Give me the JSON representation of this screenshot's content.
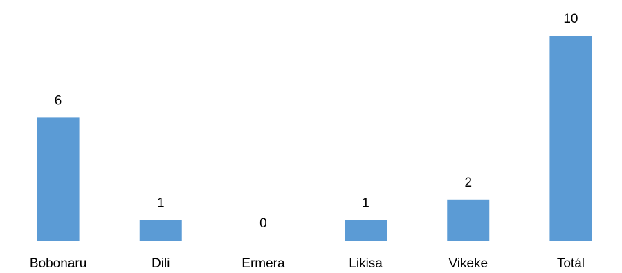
{
  "chart_data": {
    "type": "bar",
    "categories": [
      "Bobonaru",
      "Dili",
      "Ermera",
      "Likisa",
      "Vikeke",
      "Totál"
    ],
    "values": [
      6,
      1,
      0,
      1,
      2,
      10
    ],
    "data_labels": [
      "6",
      "1",
      "0",
      "1",
      "2",
      "10"
    ],
    "title": "",
    "xlabel": "",
    "ylabel": "",
    "ylim": [
      0,
      10
    ],
    "grid": false,
    "legend": "none",
    "bar_color": "#5B9BD5",
    "axis_color": "#BFBFBF",
    "label_color": "#000000"
  }
}
